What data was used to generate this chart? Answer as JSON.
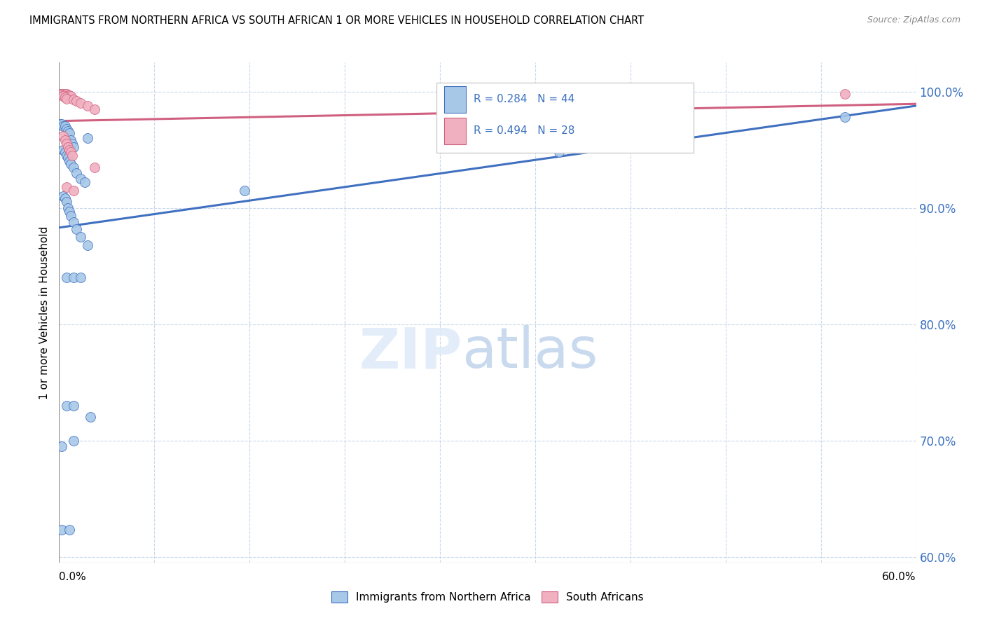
{
  "title": "IMMIGRANTS FROM NORTHERN AFRICA VS SOUTH AFRICAN 1 OR MORE VEHICLES IN HOUSEHOLD CORRELATION CHART",
  "source": "Source: ZipAtlas.com",
  "ylabel": "1 or more Vehicles in Household",
  "legend_blue_label": "Immigrants from Northern Africa",
  "legend_pink_label": "South Africans",
  "r_blue": 0.284,
  "n_blue": 44,
  "r_pink": 0.494,
  "n_pink": 28,
  "blue_color": "#a8c8e8",
  "pink_color": "#f0b0c0",
  "blue_line_color": "#4070c0",
  "pink_line_color": "#d06080",
  "yaxis_labels": [
    "100.0%",
    "90.0%",
    "80.0%",
    "70.0%",
    "60.0%"
  ],
  "yaxis_values": [
    1.0,
    0.9,
    0.8,
    0.7,
    0.6
  ],
  "xlim": [
    0.0,
    0.6
  ],
  "ylim": [
    0.595,
    1.025
  ],
  "blue_dots": [
    [
      0.001,
      0.972
    ],
    [
      0.002,
      0.972
    ],
    [
      0.003,
      0.97
    ],
    [
      0.004,
      0.97
    ],
    [
      0.005,
      0.968
    ],
    [
      0.006,
      0.966
    ],
    [
      0.007,
      0.964
    ],
    [
      0.008,
      0.958
    ],
    [
      0.009,
      0.955
    ],
    [
      0.01,
      0.952
    ],
    [
      0.003,
      0.95
    ],
    [
      0.004,
      0.948
    ],
    [
      0.005,
      0.945
    ],
    [
      0.006,
      0.943
    ],
    [
      0.007,
      0.94
    ],
    [
      0.008,
      0.938
    ],
    [
      0.01,
      0.935
    ],
    [
      0.012,
      0.93
    ],
    [
      0.015,
      0.925
    ],
    [
      0.018,
      0.922
    ],
    [
      0.02,
      0.96
    ],
    [
      0.003,
      0.91
    ],
    [
      0.004,
      0.908
    ],
    [
      0.005,
      0.905
    ],
    [
      0.006,
      0.9
    ],
    [
      0.007,
      0.897
    ],
    [
      0.008,
      0.893
    ],
    [
      0.01,
      0.888
    ],
    [
      0.012,
      0.882
    ],
    [
      0.015,
      0.875
    ],
    [
      0.02,
      0.868
    ],
    [
      0.005,
      0.84
    ],
    [
      0.01,
      0.84
    ],
    [
      0.015,
      0.84
    ],
    [
      0.005,
      0.73
    ],
    [
      0.01,
      0.73
    ],
    [
      0.002,
      0.695
    ],
    [
      0.01,
      0.7
    ],
    [
      0.022,
      0.72
    ],
    [
      0.002,
      0.623
    ],
    [
      0.007,
      0.623
    ],
    [
      0.55,
      0.978
    ],
    [
      0.35,
      0.948
    ],
    [
      0.13,
      0.915
    ]
  ],
  "pink_dots": [
    [
      0.001,
      0.998
    ],
    [
      0.002,
      0.998
    ],
    [
      0.003,
      0.998
    ],
    [
      0.004,
      0.998
    ],
    [
      0.005,
      0.998
    ],
    [
      0.006,
      0.997
    ],
    [
      0.007,
      0.997
    ],
    [
      0.008,
      0.996
    ],
    [
      0.003,
      0.996
    ],
    [
      0.004,
      0.995
    ],
    [
      0.005,
      0.994
    ],
    [
      0.01,
      0.993
    ],
    [
      0.012,
      0.992
    ],
    [
      0.015,
      0.99
    ],
    [
      0.02,
      0.988
    ],
    [
      0.025,
      0.985
    ],
    [
      0.003,
      0.962
    ],
    [
      0.004,
      0.958
    ],
    [
      0.005,
      0.955
    ],
    [
      0.006,
      0.952
    ],
    [
      0.007,
      0.95
    ],
    [
      0.008,
      0.948
    ],
    [
      0.009,
      0.945
    ],
    [
      0.025,
      0.935
    ],
    [
      0.005,
      0.918
    ],
    [
      0.01,
      0.915
    ],
    [
      0.55,
      0.998
    ],
    [
      0.35,
      0.97
    ]
  ]
}
